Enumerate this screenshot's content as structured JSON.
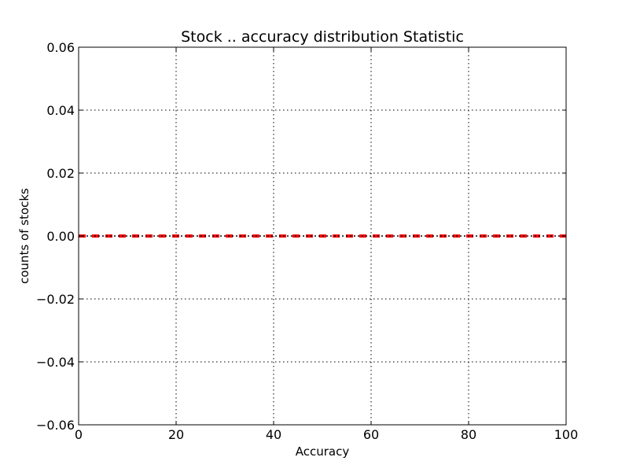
{
  "chart_data": {
    "type": "line",
    "title": "Stock .. accuracy distribution Statistic",
    "xlabel": "Accuracy",
    "ylabel": "counts of stocks",
    "xlim": [
      0,
      100
    ],
    "ylim": [
      -0.06,
      0.06
    ],
    "x_ticks": [
      0,
      20,
      40,
      60,
      80,
      100
    ],
    "x_tick_labels": [
      "0",
      "20",
      "40",
      "60",
      "80",
      "100"
    ],
    "y_ticks": [
      0.06,
      0.04,
      0.02,
      0.0,
      -0.02,
      -0.04,
      -0.06
    ],
    "y_tick_labels": [
      "0.06",
      "0.04",
      "0.02",
      "0.00",
      "−0.02",
      "−0.04",
      "−0.06"
    ],
    "grid": true,
    "grid_style": "dotted",
    "series": [
      {
        "color": "#ff0000",
        "line_style": "dashed",
        "x": [
          0,
          100
        ],
        "y": [
          0,
          0
        ]
      },
      {
        "color": "#000000",
        "line_style": "dotted",
        "x": [
          0,
          100
        ],
        "y": [
          0,
          0
        ]
      }
    ]
  }
}
